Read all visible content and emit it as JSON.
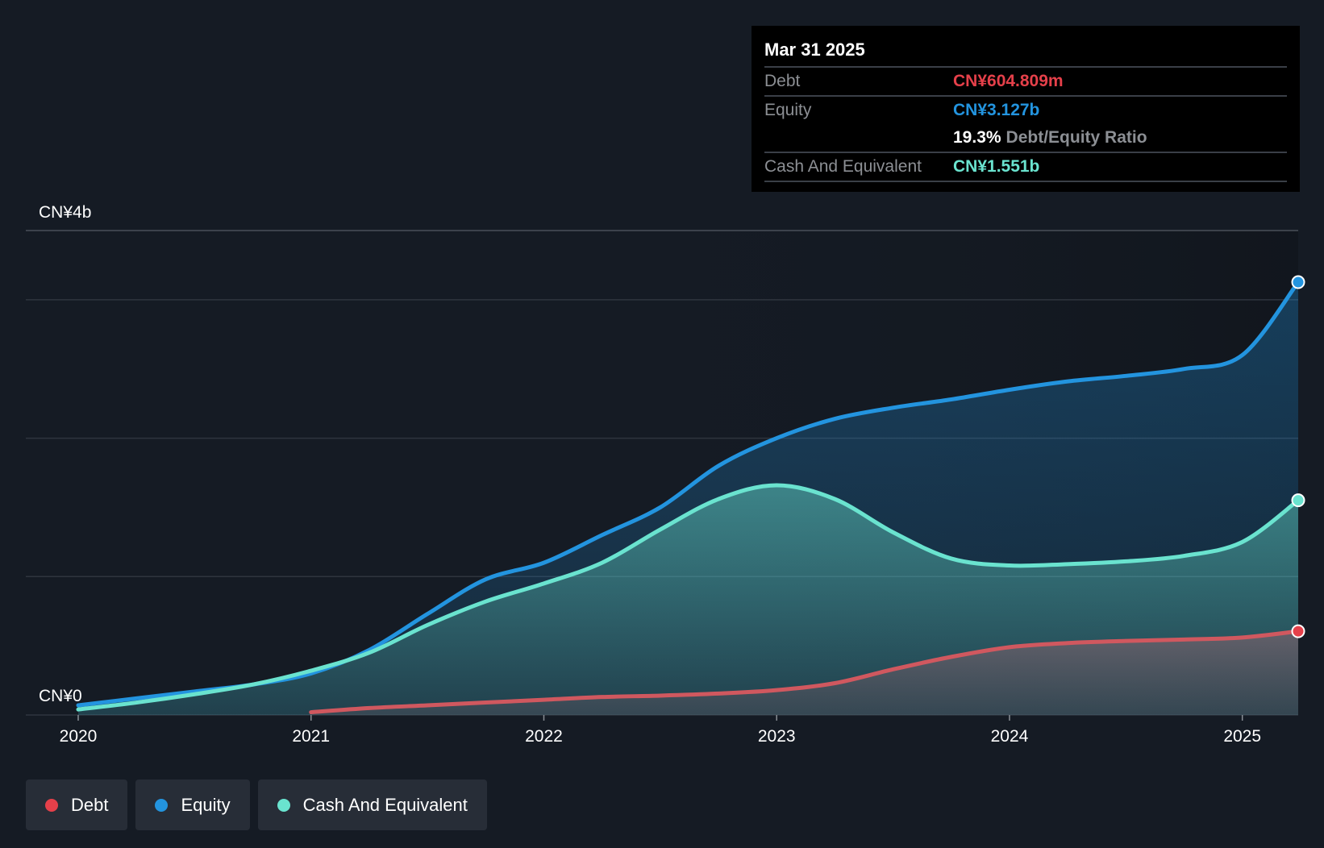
{
  "colors": {
    "debt": "#e5404a",
    "equity": "#2394df",
    "cash": "#6ae3cf",
    "background": "#151b24",
    "grid": "#2f353e"
  },
  "tooltip": {
    "date": "Mar 31 2025",
    "debt_label": "Debt",
    "debt_value": "CN¥604.809m",
    "equity_label": "Equity",
    "equity_value": "CN¥3.127b",
    "ratio_value": "19.3%",
    "ratio_label": "Debt/Equity Ratio",
    "cash_label": "Cash And Equivalent",
    "cash_value": "CN¥1.551b"
  },
  "legend": [
    {
      "label": "Debt",
      "color": "#e5404a"
    },
    {
      "label": "Equity",
      "color": "#2394df"
    },
    {
      "label": "Cash And Equivalent",
      "color": "#6ae3cf"
    }
  ],
  "chart_data": {
    "type": "area",
    "y_top_label": "CN¥4b",
    "y_bottom_label": "CN¥0",
    "ylim": [
      0,
      3.5
    ],
    "xlim": [
      2019.99,
      2025.24
    ],
    "x_ticks": [
      2020,
      2021,
      2022,
      2023,
      2024,
      2025
    ],
    "x_tick_labels": [
      "2020",
      "2021",
      "2022",
      "2023",
      "2024",
      "2025"
    ],
    "gridlines": [
      0,
      1,
      2,
      3,
      3.5
    ],
    "series": [
      {
        "name": "Equity",
        "color": "#2394df",
        "points": [
          [
            2020.0,
            0.07
          ],
          [
            2020.25,
            0.12
          ],
          [
            2020.5,
            0.17
          ],
          [
            2020.75,
            0.22
          ],
          [
            2021.0,
            0.3
          ],
          [
            2021.25,
            0.47
          ],
          [
            2021.5,
            0.73
          ],
          [
            2021.75,
            0.98
          ],
          [
            2022.0,
            1.1
          ],
          [
            2022.25,
            1.3
          ],
          [
            2022.5,
            1.5
          ],
          [
            2022.75,
            1.8
          ],
          [
            2023.0,
            2.0
          ],
          [
            2023.25,
            2.14
          ],
          [
            2023.5,
            2.22
          ],
          [
            2023.75,
            2.28
          ],
          [
            2024.0,
            2.35
          ],
          [
            2024.25,
            2.41
          ],
          [
            2024.5,
            2.45
          ],
          [
            2024.75,
            2.5
          ],
          [
            2025.0,
            2.6
          ],
          [
            2025.24,
            3.127
          ]
        ]
      },
      {
        "name": "Cash And Equivalent",
        "color": "#6ae3cf",
        "points": [
          [
            2020.0,
            0.04
          ],
          [
            2020.25,
            0.09
          ],
          [
            2020.5,
            0.15
          ],
          [
            2020.75,
            0.22
          ],
          [
            2021.0,
            0.32
          ],
          [
            2021.25,
            0.45
          ],
          [
            2021.5,
            0.65
          ],
          [
            2021.75,
            0.82
          ],
          [
            2022.0,
            0.95
          ],
          [
            2022.25,
            1.1
          ],
          [
            2022.5,
            1.34
          ],
          [
            2022.75,
            1.56
          ],
          [
            2023.0,
            1.66
          ],
          [
            2023.25,
            1.56
          ],
          [
            2023.5,
            1.32
          ],
          [
            2023.75,
            1.13
          ],
          [
            2024.0,
            1.08
          ],
          [
            2024.25,
            1.09
          ],
          [
            2024.5,
            1.11
          ],
          [
            2024.75,
            1.15
          ],
          [
            2025.0,
            1.25
          ],
          [
            2025.24,
            1.551
          ]
        ]
      },
      {
        "name": "Debt",
        "color": "#e5404a",
        "points": [
          [
            2021.0,
            0.02
          ],
          [
            2021.25,
            0.05
          ],
          [
            2021.5,
            0.07
          ],
          [
            2021.75,
            0.09
          ],
          [
            2022.0,
            0.11
          ],
          [
            2022.25,
            0.13
          ],
          [
            2022.5,
            0.14
          ],
          [
            2022.75,
            0.155
          ],
          [
            2023.0,
            0.18
          ],
          [
            2023.25,
            0.23
          ],
          [
            2023.5,
            0.33
          ],
          [
            2023.75,
            0.42
          ],
          [
            2024.0,
            0.49
          ],
          [
            2024.25,
            0.52
          ],
          [
            2024.5,
            0.535
          ],
          [
            2024.75,
            0.545
          ],
          [
            2025.0,
            0.56
          ],
          [
            2025.24,
            0.604809
          ]
        ]
      }
    ]
  }
}
